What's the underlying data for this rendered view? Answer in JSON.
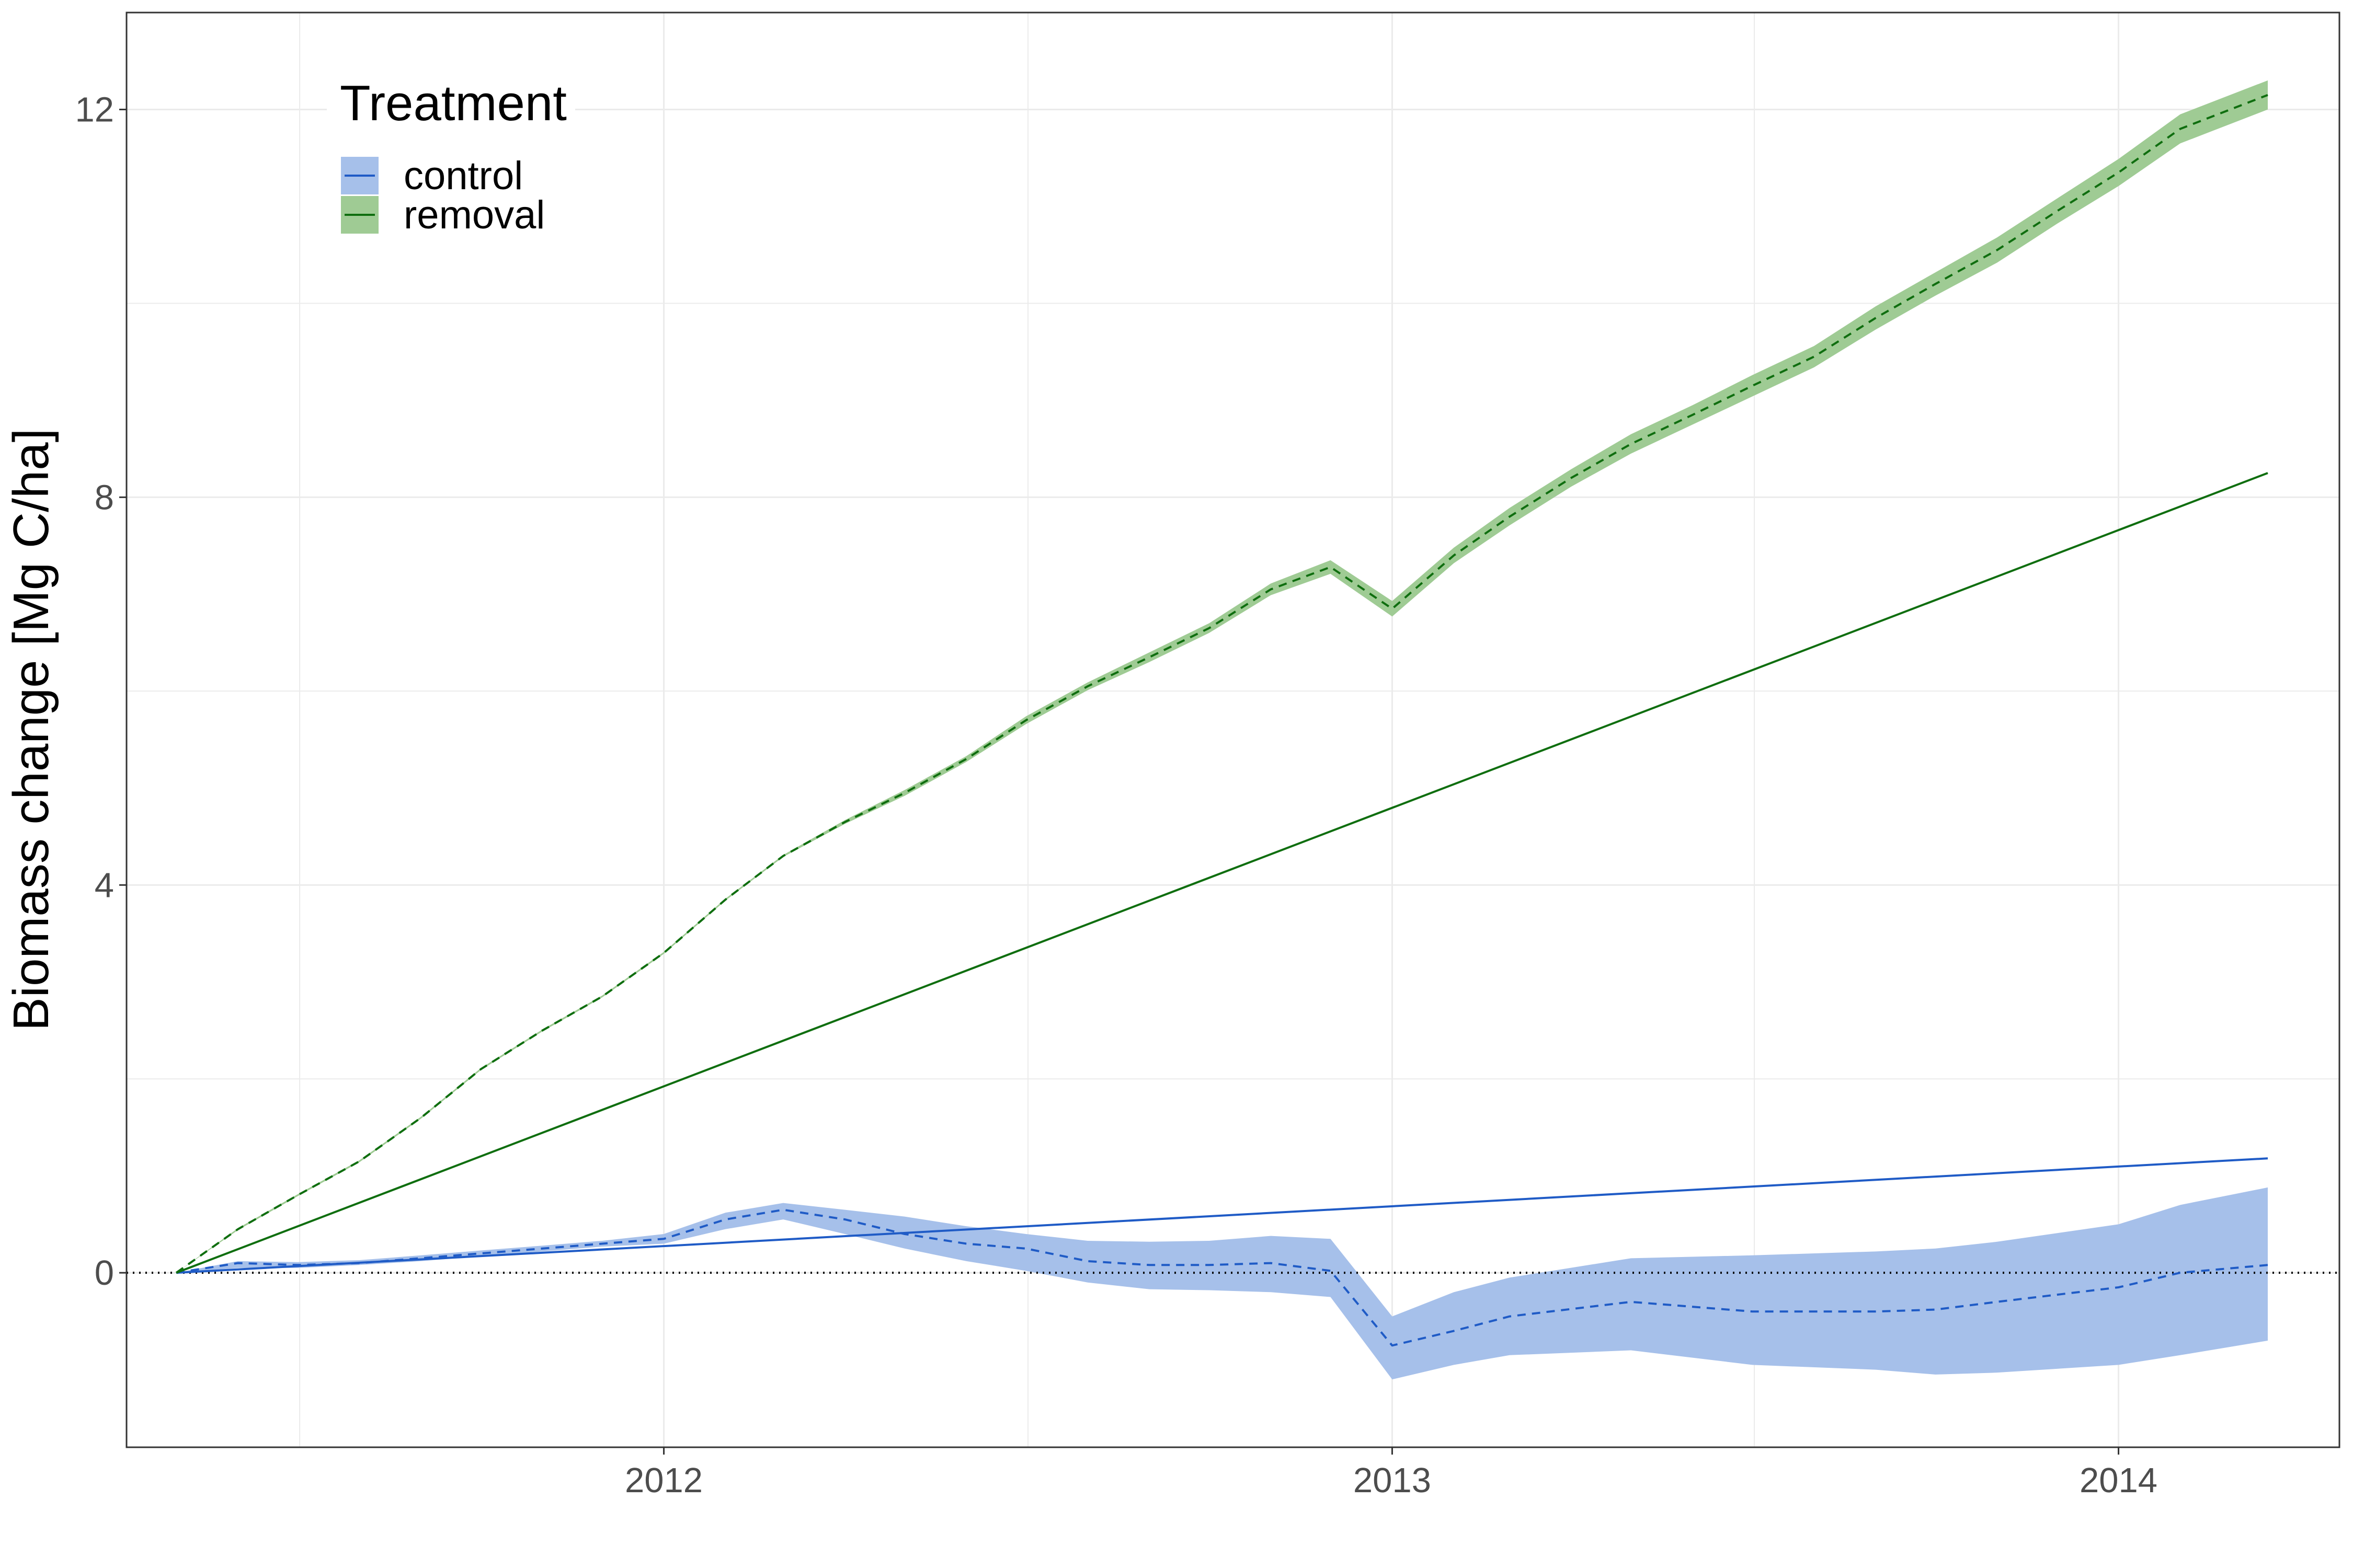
{
  "chart_data": {
    "type": "line",
    "xlabel": "",
    "ylabel": "Biomass change [Mg C/ha]",
    "x_ticks": [
      "2012",
      "2013",
      "2014"
    ],
    "y_ticks": [
      "0",
      "4",
      "8",
      "12"
    ],
    "xlim": [
      "2011-04-06",
      "2014-04-22"
    ],
    "ylim": [
      -1.8,
      13.0
    ],
    "grid": true,
    "legend": {
      "title": "Treatment",
      "position": "top-left",
      "entries": [
        {
          "label": "control",
          "color": "#1f5bc6",
          "fill": "#a6c0ea"
        },
        {
          "label": "removal",
          "color": "#0f6e0f",
          "fill": "#9fcb94"
        }
      ]
    },
    "reference_line": {
      "y": 0,
      "style": "dotted"
    },
    "series": [
      {
        "legend": "control",
        "kind": "observed mean with band",
        "color": "#1f5bc6",
        "band_color": "#a6c0ea",
        "dash": true,
        "points": [
          {
            "x": "2011-05-01",
            "y": 0.0,
            "lo": 0.0,
            "hi": 0.0
          },
          {
            "x": "2011-06-01",
            "y": 0.1,
            "lo": 0.05,
            "hi": 0.12
          },
          {
            "x": "2011-07-01",
            "y": 0.08,
            "lo": 0.05,
            "hi": 0.11
          },
          {
            "x": "2011-08-01",
            "y": 0.1,
            "lo": 0.08,
            "hi": 0.13
          },
          {
            "x": "2011-09-01",
            "y": 0.15,
            "lo": 0.12,
            "hi": 0.18
          },
          {
            "x": "2011-10-01",
            "y": 0.2,
            "lo": 0.17,
            "hi": 0.23
          },
          {
            "x": "2011-11-01",
            "y": 0.25,
            "lo": 0.22,
            "hi": 0.28
          },
          {
            "x": "2011-12-01",
            "y": 0.3,
            "lo": 0.27,
            "hi": 0.33
          },
          {
            "x": "2012-01-01",
            "y": 0.35,
            "lo": 0.3,
            "hi": 0.4
          },
          {
            "x": "2012-02-01",
            "y": 0.55,
            "lo": 0.45,
            "hi": 0.62
          },
          {
            "x": "2012-03-01",
            "y": 0.65,
            "lo": 0.55,
            "hi": 0.72
          },
          {
            "x": "2012-04-01",
            "y": 0.55,
            "lo": 0.4,
            "hi": 0.65
          },
          {
            "x": "2012-05-01",
            "y": 0.4,
            "lo": 0.25,
            "hi": 0.58
          },
          {
            "x": "2012-06-01",
            "y": 0.3,
            "lo": 0.12,
            "hi": 0.48
          },
          {
            "x": "2012-07-01",
            "y": 0.25,
            "lo": 0.02,
            "hi": 0.4
          },
          {
            "x": "2012-08-01",
            "y": 0.12,
            "lo": -0.1,
            "hi": 0.33
          },
          {
            "x": "2012-09-01",
            "y": 0.08,
            "lo": -0.17,
            "hi": 0.32
          },
          {
            "x": "2012-10-01",
            "y": 0.08,
            "lo": -0.18,
            "hi": 0.33
          },
          {
            "x": "2012-11-01",
            "y": 0.1,
            "lo": -0.2,
            "hi": 0.38
          },
          {
            "x": "2012-12-01",
            "y": 0.02,
            "lo": -0.25,
            "hi": 0.35
          },
          {
            "x": "2013-01-01",
            "y": -0.75,
            "lo": -1.1,
            "hi": -0.45
          },
          {
            "x": "2013-02-01",
            "y": -0.6,
            "lo": -0.95,
            "hi": -0.2
          },
          {
            "x": "2013-03-01",
            "y": -0.45,
            "lo": -0.85,
            "hi": -0.05
          },
          {
            "x": "2013-05-01",
            "y": -0.3,
            "lo": -0.8,
            "hi": 0.15
          },
          {
            "x": "2013-07-01",
            "y": -0.4,
            "lo": -0.95,
            "hi": 0.18
          },
          {
            "x": "2013-09-01",
            "y": -0.4,
            "lo": -1.0,
            "hi": 0.22
          },
          {
            "x": "2013-10-01",
            "y": -0.38,
            "lo": -1.05,
            "hi": 0.25
          },
          {
            "x": "2013-11-01",
            "y": -0.3,
            "lo": -1.03,
            "hi": 0.32
          },
          {
            "x": "2014-01-01",
            "y": -0.15,
            "lo": -0.95,
            "hi": 0.5
          },
          {
            "x": "2014-02-01",
            "y": 0.0,
            "lo": -0.85,
            "hi": 0.7
          },
          {
            "x": "2014-03-17",
            "y": 0.08,
            "lo": -0.7,
            "hi": 0.88
          }
        ]
      },
      {
        "legend": "control",
        "kind": "linear trend",
        "color": "#1f5bc6",
        "dash": false,
        "points": [
          {
            "x": "2011-05-01",
            "y": 0.0
          },
          {
            "x": "2014-03-17",
            "y": 1.18
          }
        ]
      },
      {
        "legend": "removal",
        "kind": "observed mean with band",
        "color": "#0f6e0f",
        "band_color": "#9fcb94",
        "dash": true,
        "points": [
          {
            "x": "2011-05-01",
            "y": 0.0,
            "lo": 0.0,
            "hi": 0.0
          },
          {
            "x": "2011-06-01",
            "y": 0.45,
            "lo": 0.44,
            "hi": 0.46
          },
          {
            "x": "2011-07-01",
            "y": 0.8,
            "lo": 0.79,
            "hi": 0.81
          },
          {
            "x": "2011-08-01",
            "y": 1.15,
            "lo": 1.14,
            "hi": 1.16
          },
          {
            "x": "2011-09-01",
            "y": 1.6,
            "lo": 1.59,
            "hi": 1.61
          },
          {
            "x": "2011-10-01",
            "y": 2.1,
            "lo": 2.09,
            "hi": 2.11
          },
          {
            "x": "2011-11-01",
            "y": 2.5,
            "lo": 2.49,
            "hi": 2.51
          },
          {
            "x": "2011-12-01",
            "y": 2.85,
            "lo": 2.84,
            "hi": 2.86
          },
          {
            "x": "2012-01-01",
            "y": 3.3,
            "lo": 3.29,
            "hi": 3.31
          },
          {
            "x": "2012-02-01",
            "y": 3.85,
            "lo": 3.84,
            "hi": 3.86
          },
          {
            "x": "2012-03-01",
            "y": 4.3,
            "lo": 4.29,
            "hi": 4.31
          },
          {
            "x": "2012-04-01",
            "y": 4.65,
            "lo": 4.63,
            "hi": 4.67
          },
          {
            "x": "2012-05-01",
            "y": 4.95,
            "lo": 4.92,
            "hi": 4.98
          },
          {
            "x": "2012-06-01",
            "y": 5.3,
            "lo": 5.27,
            "hi": 5.33
          },
          {
            "x": "2012-07-01",
            "y": 5.7,
            "lo": 5.66,
            "hi": 5.74
          },
          {
            "x": "2012-08-01",
            "y": 6.05,
            "lo": 6.01,
            "hi": 6.09
          },
          {
            "x": "2012-09-01",
            "y": 6.35,
            "lo": 6.3,
            "hi": 6.4
          },
          {
            "x": "2012-10-01",
            "y": 6.65,
            "lo": 6.6,
            "hi": 6.7
          },
          {
            "x": "2012-11-01",
            "y": 7.05,
            "lo": 6.99,
            "hi": 7.11
          },
          {
            "x": "2012-12-01",
            "y": 7.28,
            "lo": 7.21,
            "hi": 7.35
          },
          {
            "x": "2013-01-01",
            "y": 6.85,
            "lo": 6.77,
            "hi": 6.93
          },
          {
            "x": "2013-02-01",
            "y": 7.4,
            "lo": 7.32,
            "hi": 7.48
          },
          {
            "x": "2013-03-01",
            "y": 7.8,
            "lo": 7.71,
            "hi": 7.89
          },
          {
            "x": "2013-04-01",
            "y": 8.2,
            "lo": 8.11,
            "hi": 8.29
          },
          {
            "x": "2013-05-01",
            "y": 8.55,
            "lo": 8.45,
            "hi": 8.65
          },
          {
            "x": "2013-06-01",
            "y": 8.85,
            "lo": 8.75,
            "hi": 8.95
          },
          {
            "x": "2013-07-01",
            "y": 9.15,
            "lo": 9.04,
            "hi": 9.26
          },
          {
            "x": "2013-08-01",
            "y": 9.45,
            "lo": 9.34,
            "hi": 9.56
          },
          {
            "x": "2013-09-01",
            "y": 9.85,
            "lo": 9.73,
            "hi": 9.97
          },
          {
            "x": "2013-10-01",
            "y": 10.2,
            "lo": 10.08,
            "hi": 10.32
          },
          {
            "x": "2013-11-01",
            "y": 10.55,
            "lo": 10.42,
            "hi": 10.68
          },
          {
            "x": "2013-12-01",
            "y": 10.95,
            "lo": 10.82,
            "hi": 11.08
          },
          {
            "x": "2014-01-01",
            "y": 11.35,
            "lo": 11.21,
            "hi": 11.49
          },
          {
            "x": "2014-02-01",
            "y": 11.8,
            "lo": 11.65,
            "hi": 11.95
          },
          {
            "x": "2014-03-17",
            "y": 12.15,
            "lo": 12.0,
            "hi": 12.3
          }
        ]
      },
      {
        "legend": "removal",
        "kind": "linear trend",
        "color": "#0f6e0f",
        "dash": false,
        "points": [
          {
            "x": "2011-05-01",
            "y": 0.0
          },
          {
            "x": "2014-03-17",
            "y": 8.25
          }
        ]
      }
    ]
  }
}
